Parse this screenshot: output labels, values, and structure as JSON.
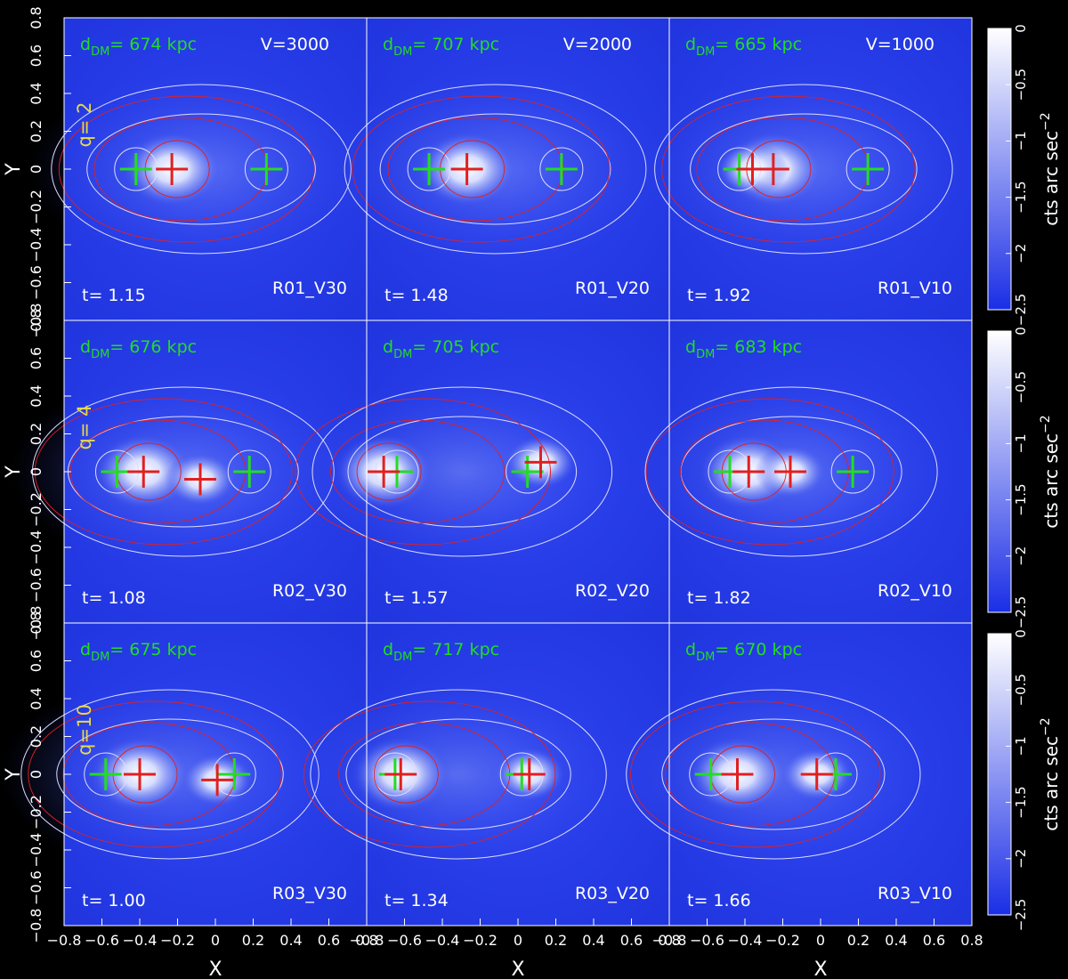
{
  "chart_data": {
    "type": "heatmap",
    "xlabel": "X",
    "ylabel": "Y",
    "xlim": [
      -0.8,
      0.8
    ],
    "ylim": [
      -0.8,
      0.8
    ],
    "x_ticks": [
      "−0.8",
      "−0.6",
      "−0.4",
      "−0.2",
      "0",
      "0.2",
      "0.4",
      "0.6",
      "0.8"
    ],
    "y_ticks": [
      "−0.8",
      "−0.6",
      "−0.4",
      "−0.2",
      "0",
      "0.2",
      "0.4",
      "0.6",
      "0.8"
    ],
    "colorbar": {
      "label": "cts arc sec",
      "exponent": "−2",
      "ticks": [
        "0",
        "−0.5",
        "−1",
        "−1.5",
        "−2",
        "−2.5"
      ],
      "range": [
        -2.5,
        0
      ],
      "low_color": "#1a2ee6",
      "high_color": "#ffffff"
    },
    "colors": {
      "dark_matter_cross": "#22dd22",
      "gas_cross": "#e02020",
      "contour_white": "#dcdcff",
      "contour_red": "#e02020"
    },
    "rows": [
      {
        "q_label": "q= 2",
        "panels": [
          {
            "ddm": "674 kpc",
            "v_label": "V=3000",
            "t": "1.15",
            "run": "R01_V30",
            "green": [
              [
                -0.42,
                0
              ],
              [
                0.27,
                0
              ]
            ],
            "red": [
              [
                -0.23,
                0
              ]
            ]
          },
          {
            "ddm": "707 kpc",
            "v_label": "V=2000",
            "t": "1.48",
            "run": "R01_V20",
            "green": [
              [
                -0.47,
                0
              ],
              [
                0.23,
                0
              ]
            ],
            "red": [
              [
                -0.27,
                0
              ]
            ]
          },
          {
            "ddm": "665 kpc",
            "v_label": "V=1000",
            "t": "1.92",
            "run": "R01_V10",
            "green": [
              [
                -0.43,
                0
              ],
              [
                0.25,
                0
              ]
            ],
            "red": [
              [
                -0.25,
                0
              ],
              [
                -0.36,
                0
              ]
            ]
          }
        ]
      },
      {
        "q_label": "q= 4",
        "panels": [
          {
            "ddm": "676 kpc",
            "v_label": "",
            "t": "1.08",
            "run": "R02_V30",
            "green": [
              [
                -0.52,
                0
              ],
              [
                0.18,
                0
              ]
            ],
            "red": [
              [
                -0.38,
                0
              ],
              [
                -0.08,
                -0.04
              ]
            ]
          },
          {
            "ddm": "705 kpc",
            "v_label": "",
            "t": "1.57",
            "run": "R02_V20",
            "green": [
              [
                -0.64,
                0
              ],
              [
                0.05,
                0
              ]
            ],
            "red": [
              [
                -0.71,
                0
              ],
              [
                0.12,
                0.05
              ]
            ]
          },
          {
            "ddm": "683 kpc",
            "v_label": "",
            "t": "1.82",
            "run": "R02_V10",
            "green": [
              [
                -0.48,
                0
              ],
              [
                0.17,
                0
              ]
            ],
            "red": [
              [
                -0.38,
                0
              ],
              [
                -0.16,
                0
              ]
            ]
          }
        ]
      },
      {
        "q_label": "q=10",
        "panels": [
          {
            "ddm": "675 kpc",
            "v_label": "",
            "t": "1.00",
            "run": "R03_V30",
            "green": [
              [
                -0.58,
                0
              ],
              [
                0.1,
                0
              ]
            ],
            "red": [
              [
                -0.4,
                0
              ],
              [
                0.01,
                -0.03
              ]
            ]
          },
          {
            "ddm": "717 kpc",
            "v_label": "",
            "t": "1.34",
            "run": "R03_V20",
            "green": [
              [
                -0.65,
                0
              ],
              [
                0.02,
                0
              ]
            ],
            "red": [
              [
                -0.62,
                0
              ],
              [
                0.06,
                0
              ]
            ]
          },
          {
            "ddm": "670 kpc",
            "v_label": "",
            "t": "1.66",
            "run": "R03_V10",
            "green": [
              [
                -0.58,
                0
              ],
              [
                0.08,
                0
              ]
            ],
            "red": [
              [
                -0.44,
                0
              ],
              [
                -0.02,
                0
              ]
            ]
          }
        ]
      }
    ]
  }
}
